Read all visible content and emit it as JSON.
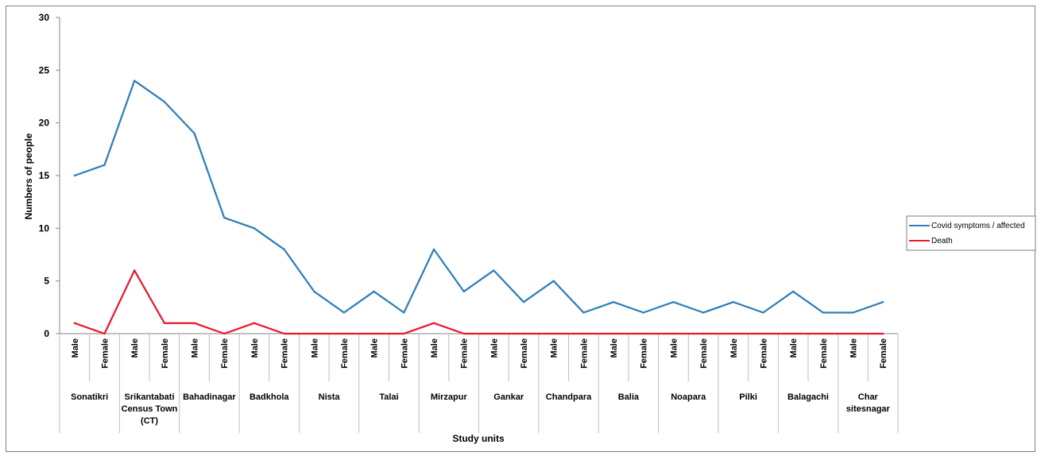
{
  "chart_data": {
    "type": "line",
    "xlabel": "Study units",
    "ylabel": "Numbers of people",
    "ylim": [
      0,
      30
    ],
    "yticks": [
      0,
      5,
      10,
      15,
      20,
      25,
      30
    ],
    "grid": false,
    "legend_position": "right",
    "groups": [
      {
        "label": [
          "Sonatikri"
        ]
      },
      {
        "label": [
          "Srikantabati",
          "Census Town",
          "(CT)"
        ]
      },
      {
        "label": [
          "Bahadinagar"
        ]
      },
      {
        "label": [
          "Badkhola"
        ]
      },
      {
        "label": [
          "Nista"
        ]
      },
      {
        "label": [
          "Talai"
        ]
      },
      {
        "label": [
          "Mirzapur"
        ]
      },
      {
        "label": [
          "Gankar"
        ]
      },
      {
        "label": [
          "Chandpara"
        ]
      },
      {
        "label": [
          "Balia"
        ]
      },
      {
        "label": [
          "Noapara"
        ]
      },
      {
        "label": [
          "Pilki"
        ]
      },
      {
        "label": [
          "Balagachi"
        ]
      },
      {
        "label": [
          "Char",
          "sitesnagar"
        ]
      }
    ],
    "subcategories": [
      "Male",
      "Female"
    ],
    "series": [
      {
        "name": "Covid symptoms / affected",
        "color": "#2e7eb8",
        "values": [
          15,
          16,
          24,
          22,
          19,
          11,
          10,
          8,
          4,
          2,
          4,
          2,
          8,
          4,
          6,
          3,
          5,
          2,
          3,
          2,
          3,
          2,
          3,
          2,
          4,
          2,
          2,
          3
        ]
      },
      {
        "name": "Death",
        "color": "#e8192c",
        "values": [
          1,
          0,
          6,
          1,
          1,
          0,
          1,
          0,
          0,
          0,
          0,
          0,
          1,
          0,
          0,
          0,
          0,
          0,
          0,
          0,
          0,
          0,
          0,
          0,
          0,
          0,
          0,
          0
        ]
      }
    ]
  }
}
